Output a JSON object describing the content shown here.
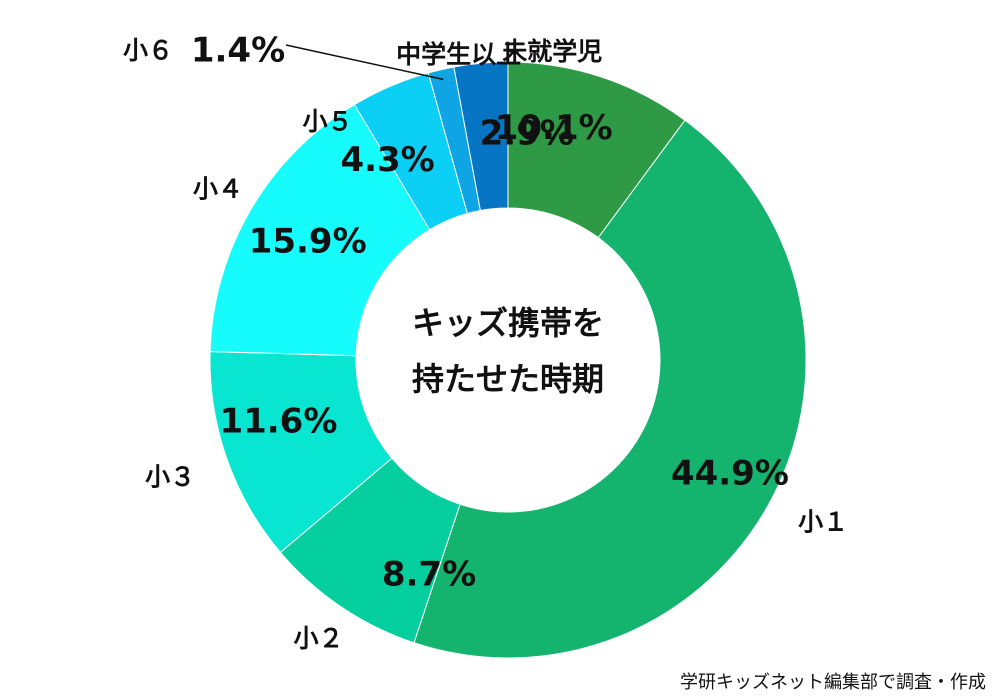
{
  "chart_data": {
    "type": "pie",
    "donut": true,
    "center_title": [
      "キッズ携帯を",
      "持たせた時期"
    ],
    "categories": [
      "未就学児",
      "小１",
      "小２",
      "小３",
      "小４",
      "小５",
      "小６",
      "中学生以上"
    ],
    "category_labels": [
      "未就学児",
      "小１",
      "小２",
      "小３",
      "小４",
      "小５",
      "小６",
      "中学生以上"
    ],
    "value_labels": [
      "10.1%",
      "44.9%",
      "8.7%",
      "11.6%",
      "15.9%",
      "4.3%",
      "1.4%",
      "2.9%"
    ],
    "values": [
      10.1,
      44.9,
      8.7,
      11.6,
      15.9,
      4.3,
      1.4,
      2.9
    ],
    "colors": [
      "#2e9a46",
      "#15b46e",
      "#06cf9f",
      "#08e6d1",
      "#16fbfc",
      "#0bcff5",
      "#0fa4e3",
      "#0675c4"
    ],
    "legend": "none"
  },
  "source_note": "学研キッズネット編集部で調査・作成"
}
